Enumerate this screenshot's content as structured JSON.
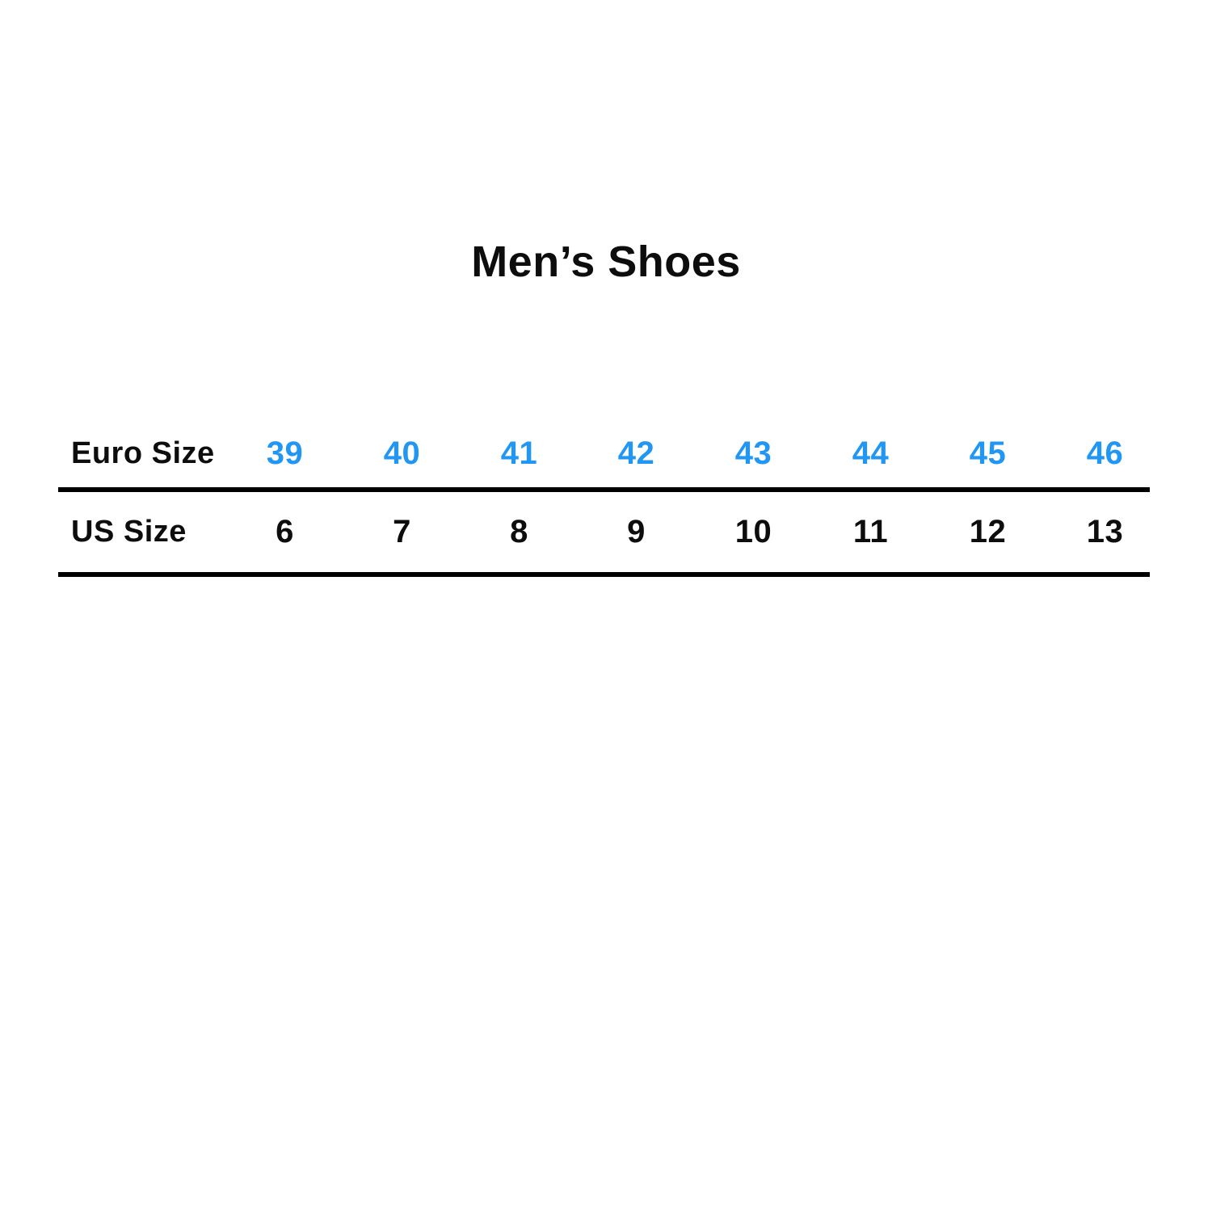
{
  "title": "Men’s Shoes",
  "colors": {
    "accent_blue": "#2196F3",
    "text_black": "#0D0D0D",
    "line_black": "#000000",
    "background": "#FFFFFF"
  },
  "table": {
    "euro_row": {
      "label": "Euro Size",
      "values": [
        "39",
        "40",
        "41",
        "42",
        "43",
        "44",
        "45",
        "46"
      ]
    },
    "us_row": {
      "label": "US Size",
      "values": [
        "6",
        "7",
        "8",
        "9",
        "10",
        "11",
        "12",
        "13"
      ]
    }
  },
  "chart_data": {
    "type": "table",
    "title": "Men’s Shoes",
    "rows": [
      {
        "label": "Euro Size",
        "values": [
          39,
          40,
          41,
          42,
          43,
          44,
          45,
          46
        ]
      },
      {
        "label": "US Size",
        "values": [
          6,
          7,
          8,
          9,
          10,
          11,
          12,
          13
        ]
      }
    ],
    "layout_hints": {
      "euro_values_color": "#2196F3",
      "us_values_color": "#0D0D0D",
      "rules": "thick black horizontal rule below each row"
    }
  }
}
